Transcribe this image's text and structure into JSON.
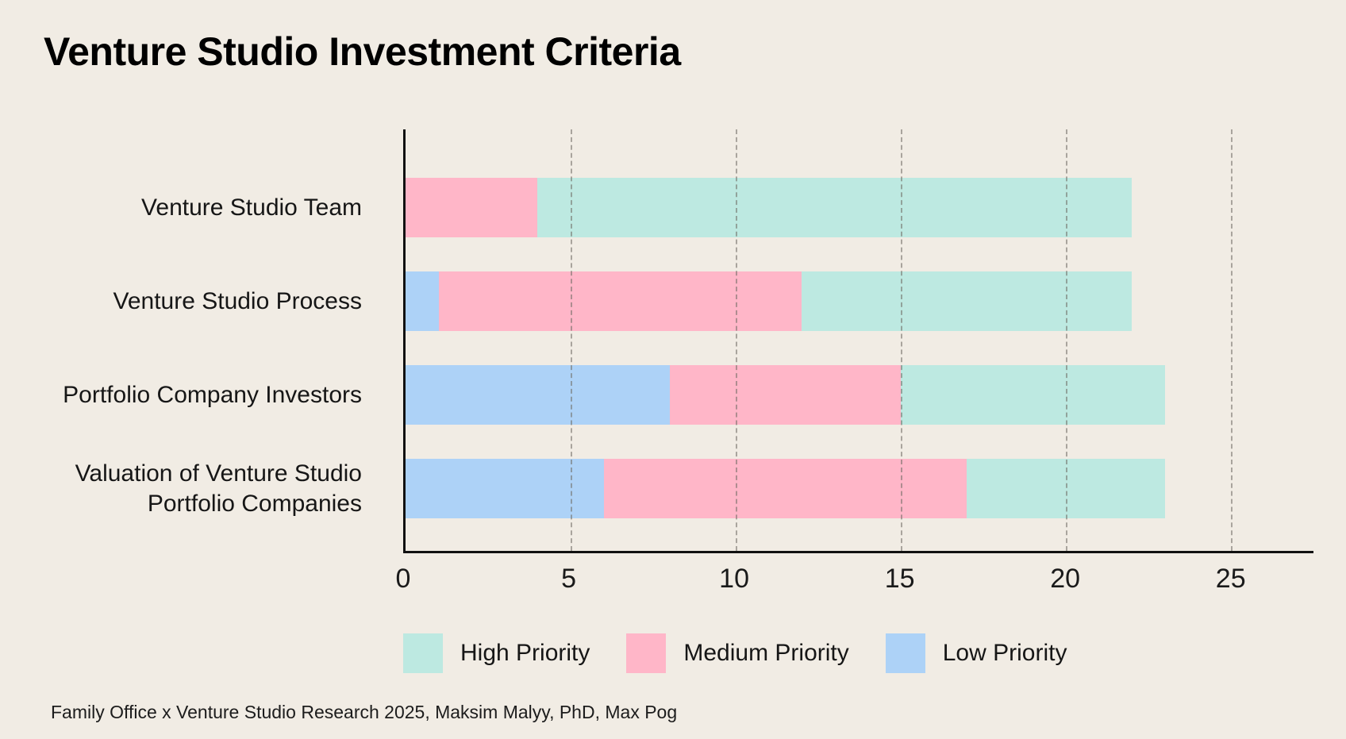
{
  "title": "Venture Studio Investment Criteria",
  "source": "Family Office x Venture Studio Research 2025, Maksim Malyy, PhD, Max Pog",
  "colors": {
    "background": "#f1ece4",
    "axis": "#111111",
    "grid": "#6e6a62",
    "text": "#161616",
    "high_priority": "#bde9e1",
    "medium_priority": "#ffb6c8",
    "low_priority": "#add2f7"
  },
  "chart_data": {
    "type": "bar",
    "orientation": "horizontal",
    "stacked": true,
    "title": "Venture Studio Investment Criteria",
    "categories": [
      "Venture Studio Team",
      "Venture Studio Process",
      "Portfolio Company Investors",
      "Valuation of Venture Studio Portfolio Companies"
    ],
    "series": [
      {
        "name": "Low Priority",
        "color": "#add2f7",
        "values": [
          0,
          1,
          8,
          6
        ]
      },
      {
        "name": "Medium Priority",
        "color": "#ffb6c8",
        "values": [
          4,
          11,
          7,
          11
        ]
      },
      {
        "name": "High Priority",
        "color": "#bde9e1",
        "values": [
          18,
          10,
          8,
          6
        ]
      }
    ],
    "totals": [
      22,
      22,
      23,
      23
    ],
    "x_ticks": [
      0,
      5,
      10,
      15,
      20,
      25
    ],
    "xlim": [
      0,
      27.5
    ],
    "grid": "vertical-dashed-over-bars",
    "legend_position": "bottom",
    "legend_order": [
      "High Priority",
      "Medium Priority",
      "Low Priority"
    ]
  }
}
